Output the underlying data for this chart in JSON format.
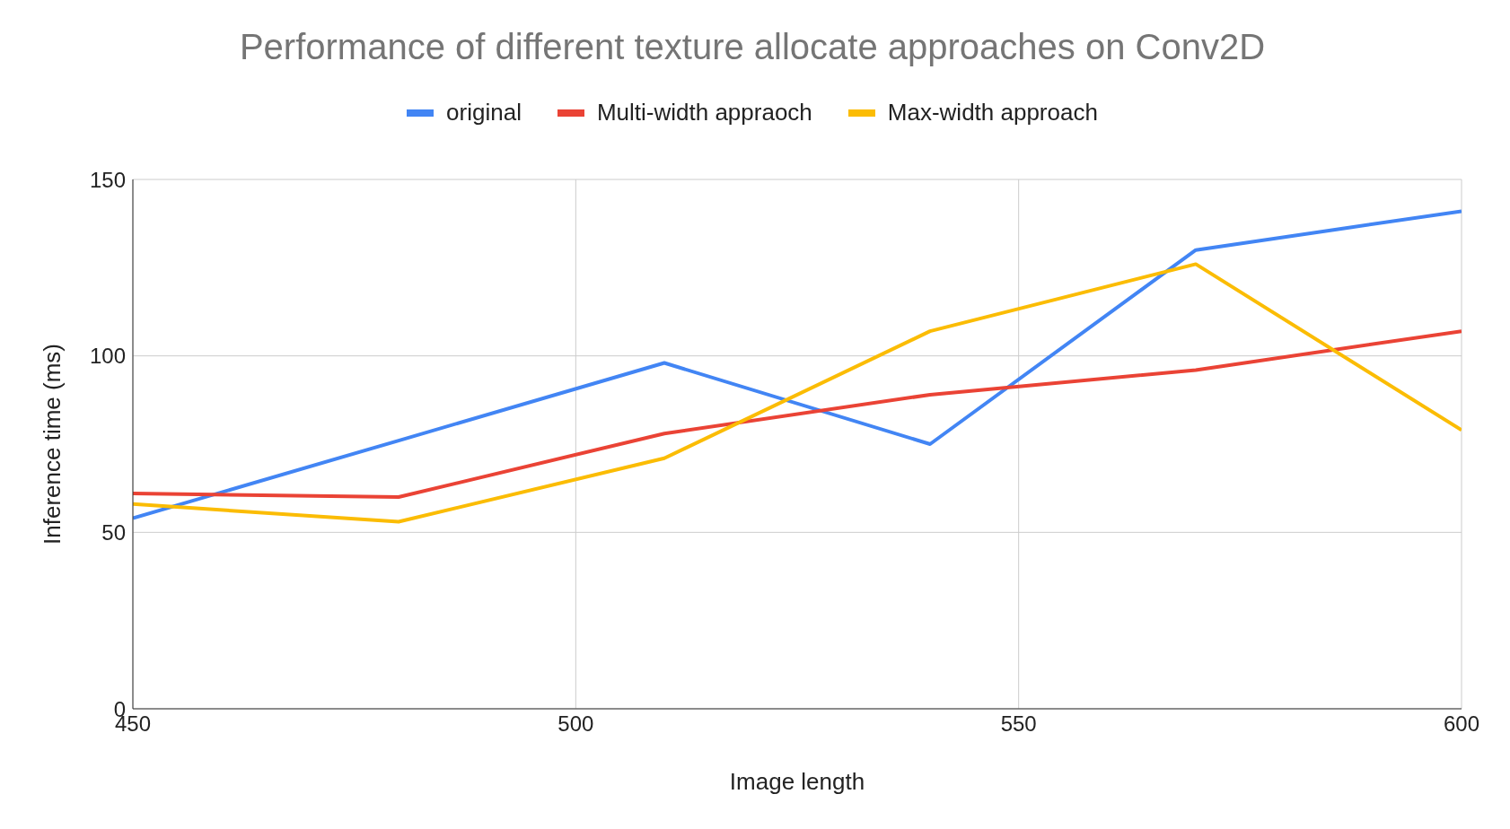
{
  "chart_data": {
    "type": "line",
    "title": "Performance of different texture allocate approaches on Conv2D",
    "xlabel": "Image length",
    "ylabel": "Inference time (ms)",
    "x": [
      450,
      480,
      510,
      540,
      570,
      600
    ],
    "series": [
      {
        "name": "original",
        "color": "#4285f4",
        "values": [
          54,
          76,
          98,
          75,
          130,
          141
        ]
      },
      {
        "name": "Multi-width appraoch",
        "color": "#ea4335",
        "values": [
          61,
          60,
          78,
          89,
          96,
          107
        ]
      },
      {
        "name": "Max-width approach",
        "color": "#fbbc04",
        "values": [
          58,
          53,
          71,
          107,
          126,
          79
        ]
      }
    ],
    "xlim": [
      450,
      600
    ],
    "xticks": [
      450,
      500,
      550,
      600
    ],
    "ylim": [
      0,
      150
    ],
    "yticks": [
      0,
      50,
      100,
      150
    ],
    "grid": true,
    "legend": "top",
    "marker": "none",
    "line_style": "solid"
  }
}
